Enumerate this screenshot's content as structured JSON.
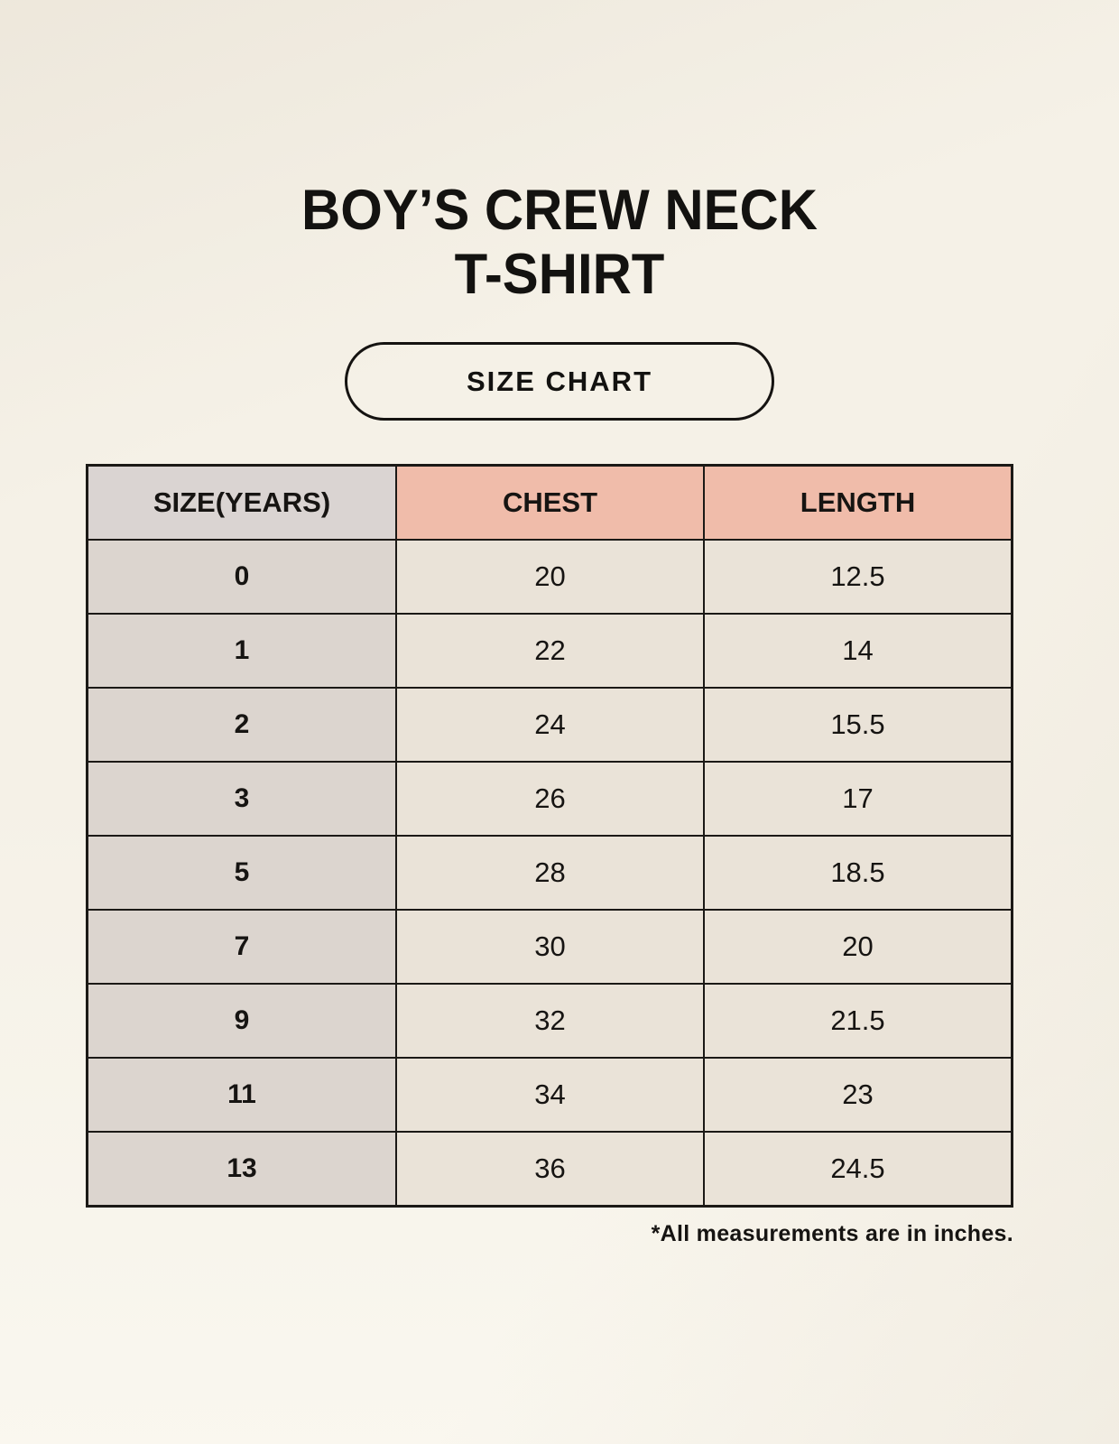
{
  "page": {
    "title_line1": "BOY’S CREW NECK",
    "title_line2": "T-SHIRT",
    "badge_label": "SIZE CHART",
    "footnote": "*All measurements are in inches."
  },
  "chart_data": {
    "type": "table",
    "title": "BOY’S CREW NECK T-SHIRT — SIZE CHART",
    "columns": [
      "SIZE(YEARS)",
      "CHEST",
      "LENGTH"
    ],
    "rows": [
      [
        "0",
        "20",
        "12.5"
      ],
      [
        "1",
        "22",
        "14"
      ],
      [
        "2",
        "24",
        "15.5"
      ],
      [
        "3",
        "26",
        "17"
      ],
      [
        "5",
        "28",
        "18.5"
      ],
      [
        "7",
        "30",
        "20"
      ],
      [
        "9",
        "32",
        "21.5"
      ],
      [
        "11",
        "34",
        "23"
      ],
      [
        "13",
        "36",
        "24.5"
      ]
    ],
    "units": "inches"
  },
  "colors": {
    "background": "#f5f1e7",
    "size_header_bg": "#dad4d2",
    "measure_header_bg": "#f0bcaa",
    "row_label_bg": "#dcd5cf",
    "value_cell_bg": "#eae3d8",
    "border": "#1b1916",
    "text": "#161412"
  }
}
